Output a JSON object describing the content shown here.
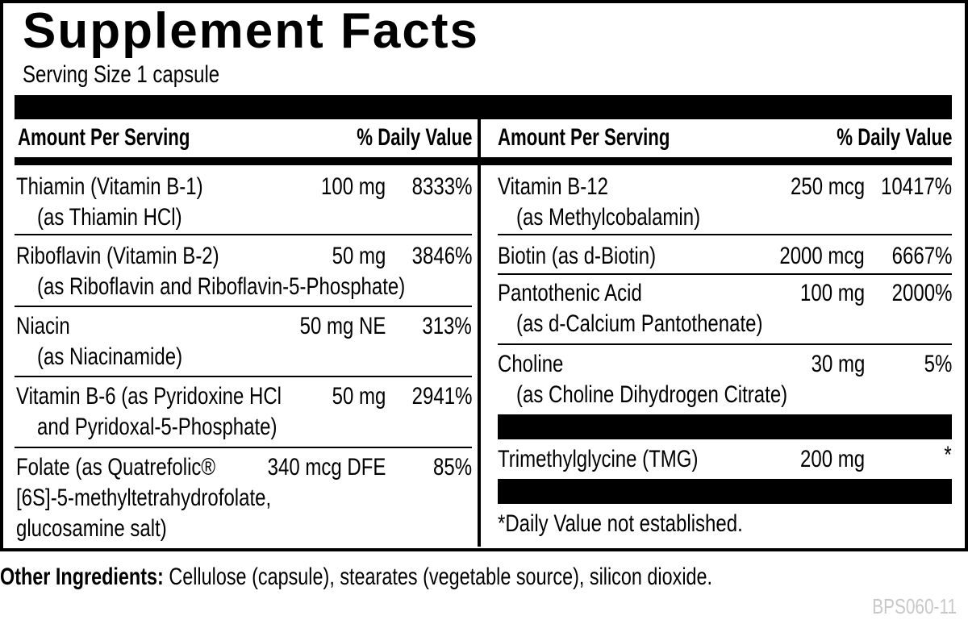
{
  "title": "Supplement Facts",
  "serving_size": "Serving Size 1 capsule",
  "header": {
    "amount": "Amount Per Serving",
    "dv": "% Daily Value"
  },
  "left": [
    {
      "lines": [
        "Thiamin (Vitamin B-1)",
        "(as Thiamin HCl)"
      ],
      "amount": "100 mg",
      "dv": "8333%"
    },
    {
      "lines": [
        "Riboflavin (Vitamin B-2)",
        "(as Riboflavin and Riboflavin-5-Phosphate)"
      ],
      "amount": "50 mg",
      "dv": "3846%"
    },
    {
      "lines": [
        "Niacin",
        "(as Niacinamide)"
      ],
      "amount": "50 mg NE",
      "dv": "313%"
    },
    {
      "lines": [
        "Vitamin B-6 (as Pyridoxine HCl",
        "and Pyridoxal-5-Phosphate)"
      ],
      "amount": "50 mg",
      "dv": "2941%"
    },
    {
      "lines": [
        "Folate (as Quatrefolic®",
        "[6S]-5-methyltetrahydrofolate,",
        "glucosamine salt)"
      ],
      "amount": "340 mcg DFE",
      "dv": "85%"
    }
  ],
  "right": [
    {
      "lines": [
        "Vitamin B-12",
        "(as Methylcobalamin)"
      ],
      "amount": "250 mcg",
      "dv": "10417%"
    },
    {
      "lines": [
        "Biotin (as d-Biotin)"
      ],
      "amount": "2000 mcg",
      "dv": "6667%"
    },
    {
      "lines": [
        "Pantothenic Acid",
        "(as d-Calcium Pantothenate)"
      ],
      "amount": "100 mg",
      "dv": "2000%"
    },
    {
      "lines": [
        "Choline",
        "(as Choline Dihydrogen Citrate)"
      ],
      "amount": "30 mg",
      "dv": "5%"
    },
    {
      "lines": [
        "Trimethylglycine (TMG)"
      ],
      "amount": "200 mg",
      "dv": "*"
    }
  ],
  "footnote": "*Daily Value not established.",
  "other_ingredients": {
    "label": "Other Ingredients:",
    "text": " Cellulose (capsule), stearates (vegetable source), silicon dioxide."
  },
  "code": "BPS060-11"
}
